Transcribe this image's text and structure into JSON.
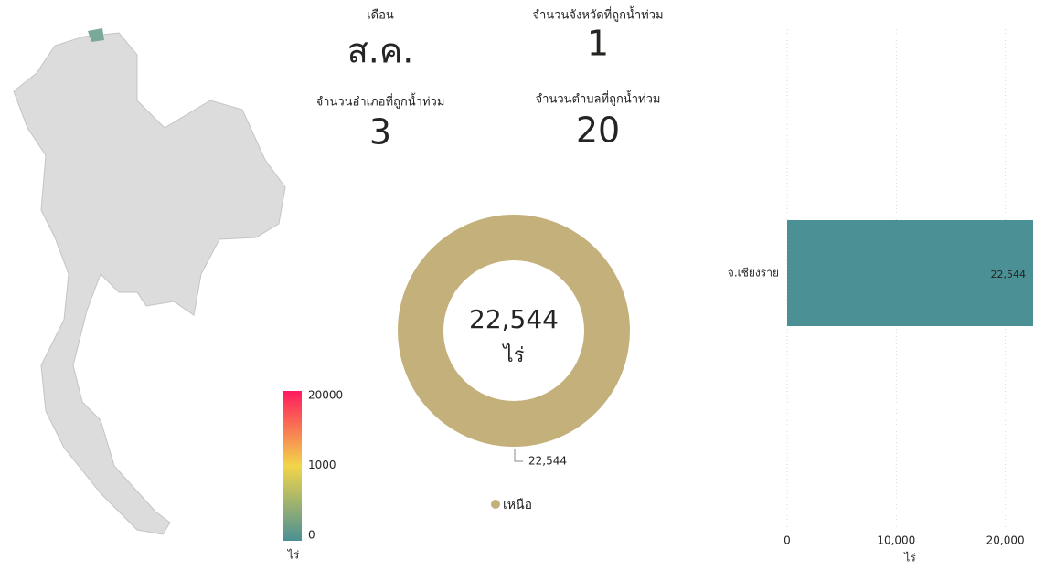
{
  "kpis": [
    {
      "label": "เดือน",
      "value": "ส.ค."
    },
    {
      "label": "จำนวนจังหวัดที่ถูกน้ำท่วม",
      "value": 1
    },
    {
      "label": "จำนวนอำเภอที่ถูกน้ำท่วม",
      "value": 3
    },
    {
      "label": "จำนวนตำบลที่ถูกน้ำท่วม",
      "value": 20
    }
  ],
  "map": {
    "legend_title": "ไร่",
    "legend_stops": [
      {
        "value": 0,
        "color": "#4a9094"
      },
      {
        "value": 1000,
        "color": "#f2d54a"
      },
      {
        "value": 20000,
        "color": "#ff1a5e"
      }
    ]
  },
  "chart_data": [
    {
      "type": "donut",
      "categories": [
        "เหนือ"
      ],
      "values": [
        22544
      ],
      "value_labels": [
        "22,544"
      ],
      "colors": [
        "#c4b07a"
      ],
      "center_unit": "ไร่"
    },
    {
      "type": "hbar",
      "categories": [
        "จ.เชียงราย"
      ],
      "values": [
        22544
      ],
      "value_labels": [
        "22,544"
      ],
      "color": "#4a9094",
      "xlim": [
        0,
        22544
      ],
      "xticks": [
        0,
        {
          "value": 10000,
          "label": "10,000"
        },
        {
          "value": 20000,
          "label": "20,000"
        }
      ],
      "xlabel": "ไร่",
      "grid": true
    }
  ]
}
